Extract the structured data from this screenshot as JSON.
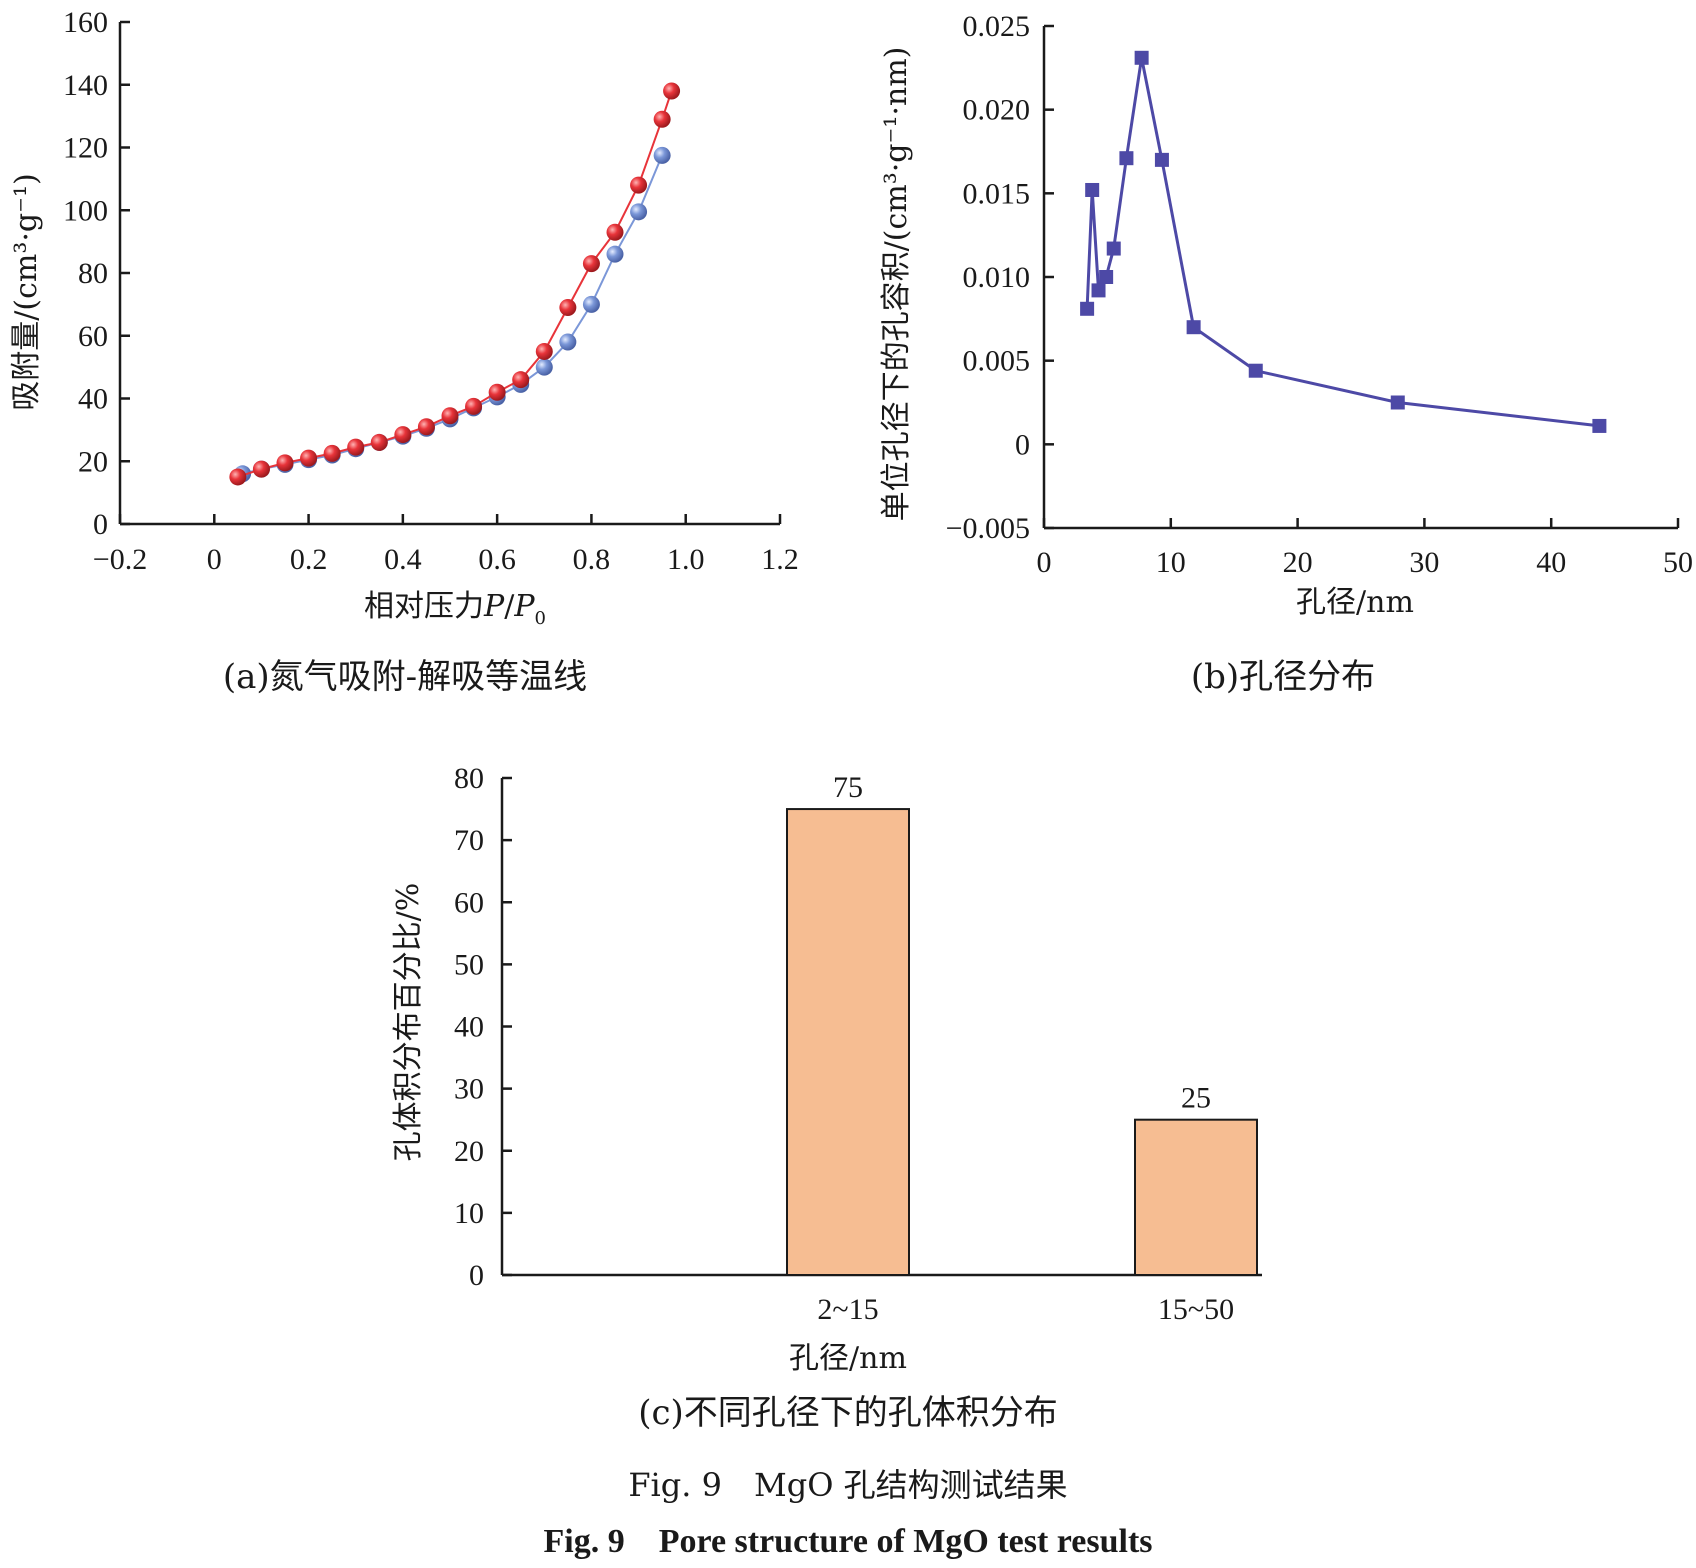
{
  "chart_data": [
    {
      "type": "line",
      "caption": "(a)氮气吸附-解吸等温线",
      "xlabel": "相对压力P/P0",
      "ylabel": "吸附量/(cm³·g⁻¹)",
      "xlim": [
        -0.2,
        1.2
      ],
      "ylim": [
        0,
        160
      ],
      "xticks": [
        "−0.2",
        "0",
        "0.2",
        "0.4",
        "0.6",
        "0.8",
        "1.0",
        "1.2"
      ],
      "yticks": [
        "0",
        "20",
        "40",
        "60",
        "80",
        "100",
        "120",
        "140",
        "160"
      ],
      "series": [
        {
          "color": "#e8343a",
          "x": [
            0.05,
            0.1,
            0.15,
            0.2,
            0.25,
            0.3,
            0.35,
            0.4,
            0.45,
            0.5,
            0.55,
            0.6,
            0.65,
            0.7,
            0.75,
            0.8,
            0.85,
            0.9,
            0.95,
            0.97
          ],
          "y": [
            15,
            17.5,
            19.5,
            21,
            22.5,
            24.5,
            26,
            28.5,
            31,
            34.5,
            37.5,
            42,
            46,
            55,
            69,
            83,
            93,
            108,
            129,
            138
          ]
        },
        {
          "color": "#7b97d8",
          "x": [
            0.06,
            0.1,
            0.15,
            0.2,
            0.25,
            0.3,
            0.35,
            0.4,
            0.45,
            0.5,
            0.55,
            0.6,
            0.65,
            0.7,
            0.75,
            0.8,
            0.85,
            0.9,
            0.95
          ],
          "y": [
            16,
            17.5,
            19,
            20.5,
            22,
            24,
            26,
            28,
            30.5,
            33.5,
            37,
            40.5,
            44.5,
            50,
            58,
            70,
            86,
            99.5,
            117.5
          ]
        }
      ]
    },
    {
      "type": "line",
      "caption": "(b)孔径分布",
      "xlabel": "孔径/nm",
      "ylabel": "单位孔径下的孔容积/(cm³·g⁻¹·nm)",
      "xlim": [
        0,
        50
      ],
      "ylim": [
        -0.005,
        0.025
      ],
      "xticks": [
        "0",
        "10",
        "20",
        "30",
        "40",
        "50"
      ],
      "yticks": [
        "−0.005",
        "0",
        "0.005",
        "0.010",
        "0.015",
        "0.020",
        "0.025"
      ],
      "series": [
        {
          "color": "#4d49a6",
          "marker": "square",
          "x": [
            3.4,
            3.8,
            4.3,
            4.9,
            5.5,
            6.5,
            7.7,
            9.3,
            11.8,
            16.7,
            27.9,
            43.8
          ],
          "y": [
            0.0081,
            0.0152,
            0.0092,
            0.01,
            0.0117,
            0.0171,
            0.0231,
            0.017,
            0.007,
            0.0044,
            0.0025,
            0.0011
          ]
        }
      ]
    },
    {
      "type": "bar",
      "caption": "(c)不同孔径下的孔体积分布",
      "xlabel": "孔径/nm",
      "ylabel": "孔体积分布百分比/%",
      "categories": [
        "2~15",
        "15~50"
      ],
      "values": [
        75,
        25
      ],
      "data_labels": [
        "75",
        "25"
      ],
      "ylim": [
        0,
        80
      ],
      "yticks": [
        "0",
        "10",
        "20",
        "30",
        "40",
        "50",
        "60",
        "70",
        "80"
      ],
      "bar_color": "#f6bd92"
    }
  ],
  "figure": {
    "title_cn": "Fig. 9　MgO 孔结构测试结果",
    "title_en": "Fig. 9　Pore structure of MgO test results"
  }
}
